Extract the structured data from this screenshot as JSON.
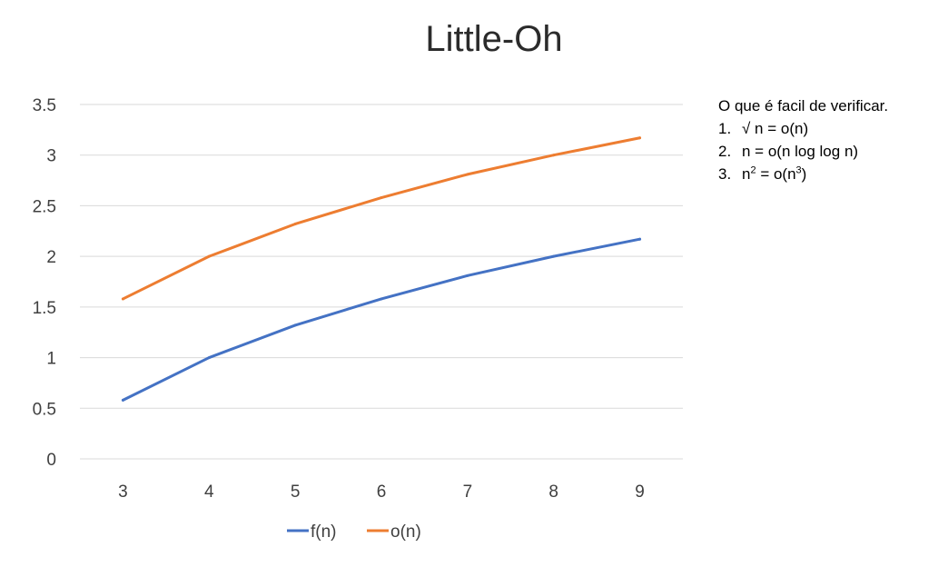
{
  "chart_data": {
    "type": "line",
    "title": "Little-Oh",
    "x": [
      3,
      4,
      5,
      6,
      7,
      8,
      9
    ],
    "xticks": [
      "3",
      "4",
      "5",
      "6",
      "7",
      "8",
      "9"
    ],
    "yticks": [
      "0",
      "0.5",
      "1",
      "1.5",
      "2",
      "2.5",
      "3",
      "3.5"
    ],
    "ylim": [
      0,
      3.5
    ],
    "grid": true,
    "legend_position": "bottom",
    "series": [
      {
        "name": "f(n)",
        "color": "#4472c4",
        "values": [
          0.58,
          1.0,
          1.32,
          1.58,
          1.81,
          2.0,
          2.17
        ]
      },
      {
        "name": "o(n)",
        "color": "#ed7d31",
        "values": [
          1.58,
          2.0,
          2.32,
          2.58,
          2.81,
          3.0,
          3.17
        ]
      }
    ]
  },
  "notes": {
    "heading": "O que é facil de verificar.",
    "items": [
      {
        "number": "1.",
        "text": "√ n = o(n)"
      },
      {
        "number": "2.",
        "text": "n = o(n log log n)"
      },
      {
        "number": "3.",
        "base1": "n",
        "sup1": "2",
        "mid": " = o(n",
        "sup2": "3",
        "end": ")"
      }
    ]
  }
}
